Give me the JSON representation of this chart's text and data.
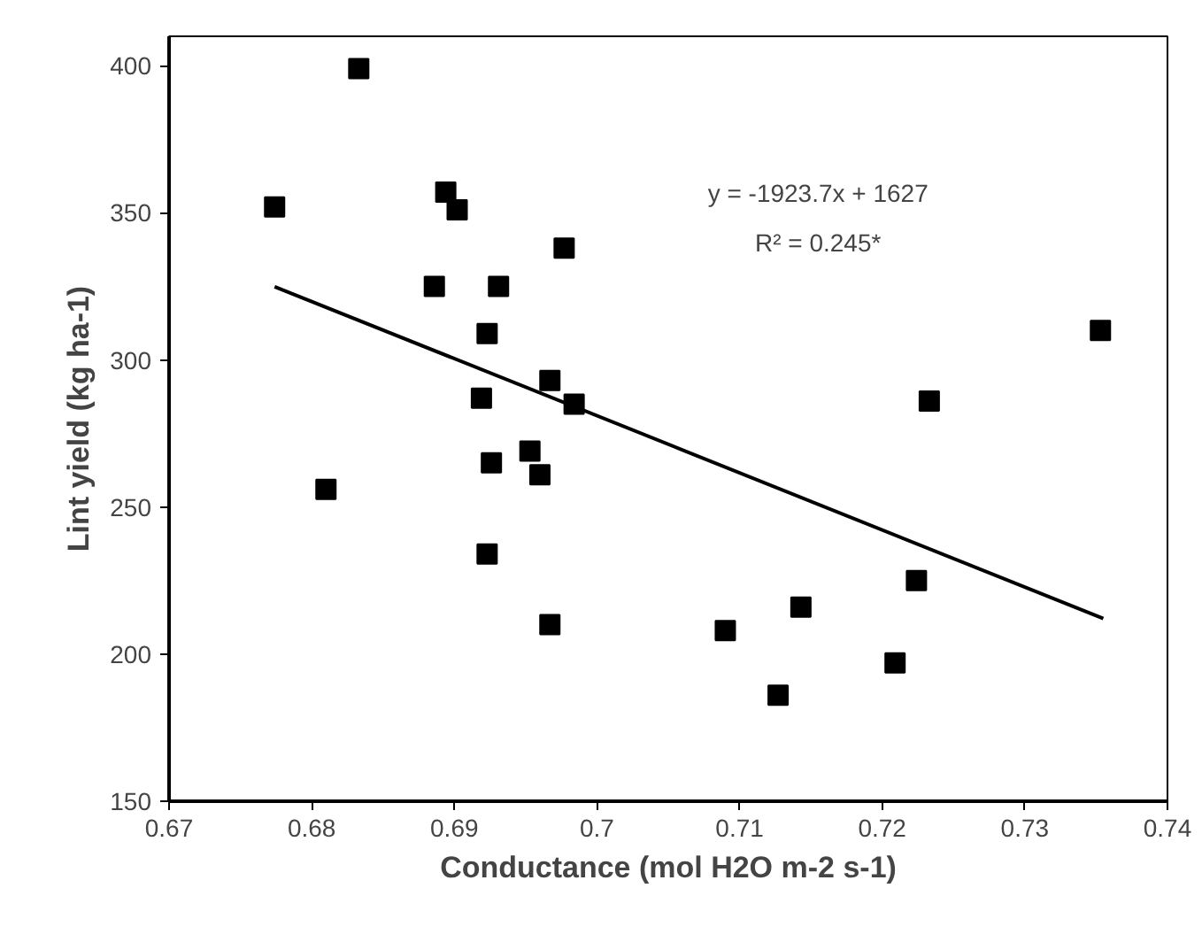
{
  "chart_data": {
    "type": "scatter",
    "xlabel": "Conductance (mol H2O m-2 s-1)",
    "ylabel": "Lint yield (kg ha-1)",
    "annotations": [
      "y = -1923.7x + 1627",
      "R² = 0.245*"
    ],
    "series": [
      {
        "color": "#000000",
        "marker": "square",
        "x": [
          0.6774,
          0.6833,
          0.6894,
          0.6902,
          0.6977,
          0.6886,
          0.6931,
          0.6923,
          0.6967,
          0.6919,
          0.6984,
          0.6953,
          0.6926,
          0.696,
          0.681,
          0.6923,
          0.6967,
          0.7353,
          0.7233,
          0.7224,
          0.7143,
          0.709,
          0.7209,
          0.7127
        ],
        "values": [
          352,
          399,
          357,
          351,
          338,
          325,
          325,
          309,
          293,
          287,
          285,
          269,
          265,
          261,
          256,
          234,
          210,
          310,
          286,
          225,
          216,
          208,
          197,
          186
        ]
      },
      {
        "type": "line",
        "color": "#000000",
        "line_style": "solid",
        "x": [
          0.6774,
          0.7355
        ],
        "values": [
          324.9,
          212.1
        ]
      }
    ],
    "xlim": [
      0.67,
      0.74
    ],
    "xticks": [
      0.67,
      0.68,
      0.69,
      0.7,
      0.71,
      0.72,
      0.73,
      0.74
    ],
    "ylim": [
      150,
      410
    ],
    "yticks": [
      150,
      200,
      250,
      300,
      350,
      400
    ],
    "grid": false
  }
}
